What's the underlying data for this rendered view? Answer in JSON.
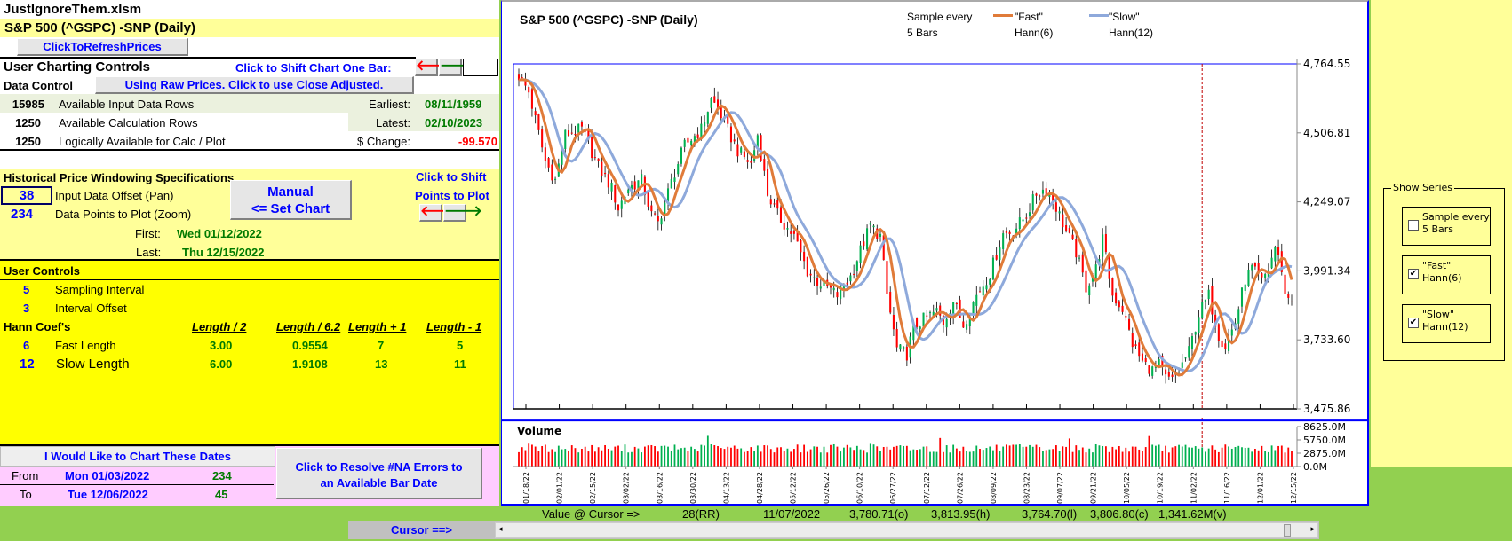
{
  "workbook": {
    "filename": "JustIgnoreThem.xlsm",
    "symbol_title": "S&P 500 (^GSPC) -SNP  (Daily)",
    "refresh_button": "ClickToRefreshPrices"
  },
  "charting_controls": {
    "title": "User Charting Controls",
    "shift_label": "Click to Shift Chart One Bar:",
    "left_arrow": "🡐",
    "right_arrow": "🡒",
    "data_control_label": "Data Control",
    "price_mode_button": "Using Raw Prices. Click to use Close Adjusted.",
    "rows": [
      {
        "value": "15985",
        "label": "Available Input Data Rows",
        "key": "Earliest:",
        "key_value": "08/11/1959"
      },
      {
        "value": "1250",
        "label": "Available Calculation Rows",
        "key": "Latest:",
        "key_value": "02/10/2023"
      },
      {
        "value": "1250",
        "label": "Logically Available for Calc / Plot",
        "key": "$ Change:",
        "key_value": "-99.570"
      }
    ]
  },
  "windowing": {
    "title": "Historical Price Windowing Specifications",
    "offset_value": "38",
    "offset_label": "Input Data Offset (Pan)",
    "points_value": "234",
    "points_label": "Data Points to Plot (Zoom)",
    "manual_button_line1": "Manual",
    "manual_button_line2": "<= Set Chart",
    "shift_points_line1": "Click to Shift",
    "shift_points_line2": "Points to Plot",
    "first_label": "First:",
    "first_value": "Wed 01/12/2022",
    "last_label": "Last:",
    "last_value": "Thu 12/15/2022"
  },
  "user_controls": {
    "title": "User Controls",
    "sampling_value": "5",
    "sampling_label": "Sampling Interval",
    "offset_value": "3",
    "offset_label": "Interval Offset",
    "hann_label": "Hann Coef's",
    "headers": [
      "Length / 2",
      "Length / 6.2",
      "Length + 1",
      "Length - 1"
    ],
    "fast": {
      "value": "6",
      "label": "Fast Length",
      "cols": [
        "3.00",
        "0.9554",
        "7",
        "5"
      ]
    },
    "slow": {
      "value": "12",
      "label": "Slow Length",
      "cols": [
        "6.00",
        "1.9108",
        "13",
        "11"
      ]
    }
  },
  "date_request": {
    "title": "I Would Like to Chart These Dates",
    "from_label": "From",
    "from_date": "Mon 01/03/2022",
    "from_count": "234",
    "to_label": "To",
    "to_date": "Tue 12/06/2022",
    "to_count": "45",
    "resolve_button_line1": "Click to Resolve #NA Errors to",
    "resolve_button_line2": "an Available Bar Date"
  },
  "cursor_bar": {
    "label": "Value @ Cursor =>",
    "bar": "28(RR)",
    "date": "11/07/2022",
    "open": "3,780.71(o)",
    "high": "3,813.95(h)",
    "low": "3,764.70(l)",
    "close": "3,806.80(c)",
    "volume": "1,341.62M(v)",
    "cursor_label": "Cursor ==>",
    "scroll_position": 0.985
  },
  "show_series": {
    "title": "Show Series",
    "items": [
      {
        "line1": "Sample every",
        "line2": "5 Bars",
        "checked": false
      },
      {
        "line1": "\"Fast\"",
        "line2": "Hann(6)",
        "checked": true
      },
      {
        "line1": "\"Slow\"",
        "line2": "Hann(12)",
        "checked": true
      }
    ]
  },
  "colors": {
    "up": "#00b050",
    "down": "#ff0000",
    "fast": "#e07b39",
    "slow": "#8ea9db",
    "cursor": "#c00000"
  },
  "chart_data": {
    "type": "candlestick",
    "title": "S&P 500 (^GSPC) -SNP  (Daily)",
    "legend": [
      {
        "line1": "Sample every",
        "line2": "5 Bars"
      },
      {
        "line1": "\"Fast\"",
        "line2": "Hann(6)"
      },
      {
        "line1": "\"Slow\"",
        "line2": "Hann(12)"
      }
    ],
    "bars": 234,
    "ylim": [
      3475.86,
      4764.55
    ],
    "y_ticks": [
      "4,764.55",
      "4,506.81",
      "4,249.07",
      "3,991.34",
      "3,733.60",
      "3,475.86"
    ],
    "close_keypoints": [
      [
        0,
        4720
      ],
      [
        3,
        4660
      ],
      [
        8,
        4400
      ],
      [
        11,
        4330
      ],
      [
        14,
        4500
      ],
      [
        19,
        4520
      ],
      [
        24,
        4380
      ],
      [
        28,
        4300
      ],
      [
        30,
        4225
      ],
      [
        33,
        4300
      ],
      [
        37,
        4330
      ],
      [
        40,
        4200
      ],
      [
        42,
        4170
      ],
      [
        47,
        4360
      ],
      [
        50,
        4460
      ],
      [
        55,
        4520
      ],
      [
        58,
        4630
      ],
      [
        60,
        4600
      ],
      [
        64,
        4490
      ],
      [
        66,
        4440
      ],
      [
        70,
        4390
      ],
      [
        72,
        4500
      ],
      [
        75,
        4280
      ],
      [
        78,
        4200
      ],
      [
        81,
        4150
      ],
      [
        83,
        4120
      ],
      [
        87,
        3990
      ],
      [
        90,
        3950
      ],
      [
        93,
        3930
      ],
      [
        96,
        3900
      ],
      [
        100,
        3970
      ],
      [
        104,
        4100
      ],
      [
        106,
        4160
      ],
      [
        109,
        4120
      ],
      [
        111,
        3900
      ],
      [
        114,
        3700
      ],
      [
        117,
        3680
      ],
      [
        119,
        3780
      ],
      [
        122,
        3810
      ],
      [
        126,
        3840
      ],
      [
        128,
        3800
      ],
      [
        131,
        3880
      ],
      [
        134,
        3790
      ],
      [
        138,
        3900
      ],
      [
        142,
        3980
      ],
      [
        146,
        4130
      ],
      [
        149,
        4140
      ],
      [
        153,
        4200
      ],
      [
        156,
        4280
      ],
      [
        159,
        4300
      ],
      [
        162,
        4230
      ],
      [
        165,
        4140
      ],
      [
        168,
        4060
      ],
      [
        171,
        3930
      ],
      [
        174,
        4000
      ],
      [
        176,
        4110
      ],
      [
        179,
        3900
      ],
      [
        182,
        3850
      ],
      [
        185,
        3720
      ],
      [
        188,
        3650
      ],
      [
        191,
        3620
      ],
      [
        193,
        3640
      ],
      [
        195,
        3590
      ],
      [
        197,
        3580
      ],
      [
        199,
        3620
      ],
      [
        202,
        3690
      ],
      [
        205,
        3830
      ],
      [
        208,
        3900
      ],
      [
        211,
        3750
      ],
      [
        213,
        3710
      ],
      [
        216,
        3800
      ],
      [
        219,
        3960
      ],
      [
        221,
        4000
      ],
      [
        224,
        3950
      ],
      [
        226,
        4000
      ],
      [
        228,
        4080
      ],
      [
        230,
        4000
      ],
      [
        231,
        3900
      ],
      [
        233,
        3890
      ]
    ],
    "cursor_bar_index": 206,
    "volume": {
      "label": "Volume",
      "ylim": [
        0,
        8625
      ],
      "y_ticks": [
        "8625.0M",
        "5750.0M",
        "2875.0M",
        "0.0M"
      ],
      "typical_M": 4000
    },
    "x_labels": [
      "01/18/22",
      "02/01/22",
      "02/15/22",
      "03/02/22",
      "03/16/22",
      "03/30/22",
      "04/13/22",
      "04/28/22",
      "05/12/22",
      "05/26/22",
      "06/10/22",
      "06/27/22",
      "07/12/22",
      "07/26/22",
      "08/09/22",
      "08/23/22",
      "09/07/22",
      "09/21/22",
      "10/05/22",
      "10/19/22",
      "11/02/22",
      "11/16/22",
      "12/01/22",
      "12/15/22"
    ]
  }
}
